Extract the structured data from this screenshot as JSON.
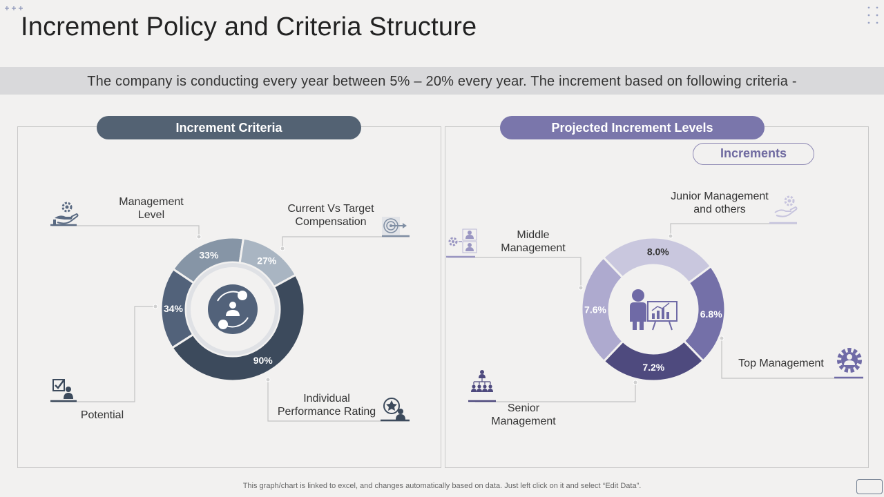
{
  "page": {
    "title": "Increment Policy and Criteria Structure",
    "banner": "The company is conducting every year between 5% – 20% every year. The increment based on following criteria -",
    "footer": "This graph/chart is linked to excel,  and changes automatically based on data. Just left click on it and select “Edit Data”."
  },
  "left": {
    "header": "Increment Criteria",
    "labels": {
      "management_level": [
        "Management",
        "Level"
      ],
      "current_vs_target": [
        "Current Vs Target",
        "Compensation"
      ],
      "potential": [
        "Potential"
      ],
      "individual_performance": [
        "Individual",
        "Performance Rating"
      ]
    }
  },
  "right": {
    "header": "Projected Increment Levels",
    "sub_header": "Increments",
    "labels": {
      "junior": [
        "Junior Management",
        "and others"
      ],
      "middle": [
        "Middle",
        "Management"
      ],
      "top": [
        "Top Management"
      ],
      "senior": [
        "Senior",
        "Management"
      ]
    }
  },
  "colors": {
    "left_header": "#536273",
    "right_header": "#7a76ab",
    "ring_dark": "#3c4a5c",
    "ring_mid": "#52627a",
    "ring_light": "#8695a6",
    "ring_lighter": "#a9b5c2",
    "right_light": "#c9c7de",
    "right_mid": "#7470a8",
    "right_dark": "#4e4a7e",
    "right_soft": "#aeaacf"
  },
  "chart_data": [
    {
      "type": "pie",
      "variant": "donut",
      "categories": [
        "Management Level",
        "Current Vs Target Compensation",
        "Individual Performance Rating",
        "Potential"
      ],
      "values": [
        33,
        27,
        90,
        34
      ],
      "value_labels": [
        "33%",
        "27%",
        "90%",
        "34%"
      ],
      "legend": "none"
    },
    {
      "type": "pie",
      "variant": "donut",
      "categories": [
        "Junior Management and others",
        "Top Management",
        "Senior Management",
        "Middle Management"
      ],
      "values": [
        8.0,
        6.8,
        7.2,
        7.6
      ],
      "value_labels": [
        "8.0%",
        "6.8%",
        "7.2%",
        "7.6%"
      ],
      "legend": "none"
    }
  ]
}
